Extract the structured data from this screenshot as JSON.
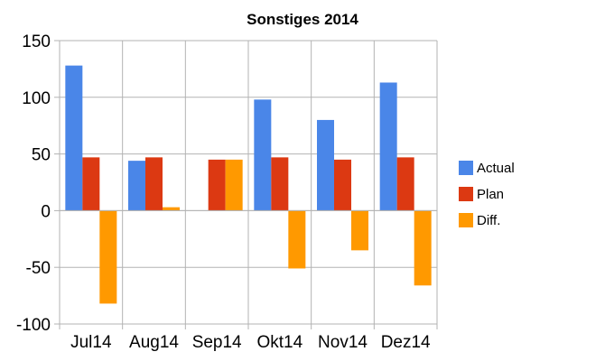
{
  "chart_data": {
    "type": "bar",
    "title": "Sonstiges 2014",
    "categories": [
      "Jul14",
      "Aug14",
      "Sep14",
      "Okt14",
      "Nov14",
      "Dez14"
    ],
    "series": [
      {
        "name": "Actual",
        "color": "#4a86e8",
        "values": [
          128,
          44,
          0,
          98,
          80,
          113
        ]
      },
      {
        "name": "Plan",
        "color": "#dc3912",
        "values": [
          47,
          47,
          45,
          47,
          45,
          47
        ]
      },
      {
        "name": "Diff.",
        "color": "#ff9900",
        "values": [
          -82,
          3,
          45,
          -51,
          -35,
          -66
        ]
      }
    ],
    "ylim": [
      -100,
      150
    ],
    "yticks": [
      -100,
      -50,
      0,
      50,
      100,
      150
    ],
    "xlabel": "",
    "ylabel": "",
    "grid": true,
    "legend_position": "right"
  }
}
